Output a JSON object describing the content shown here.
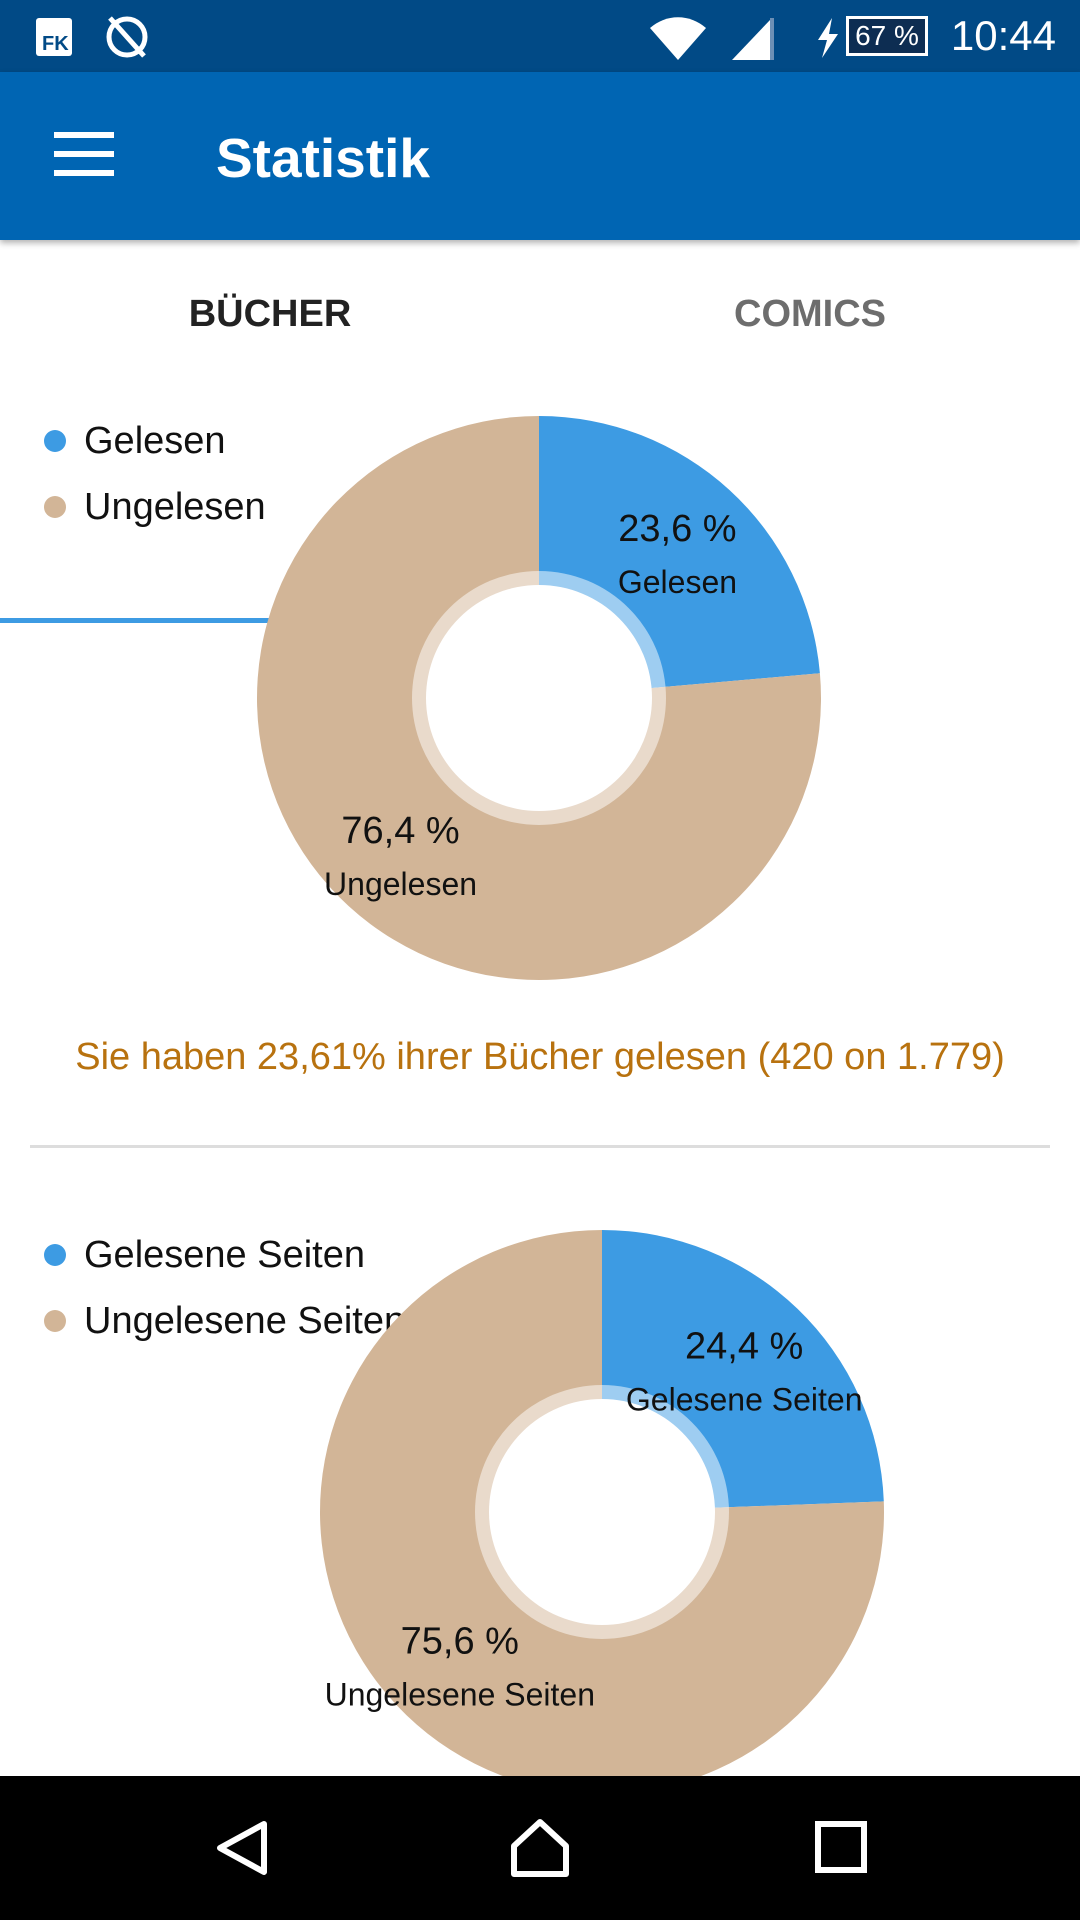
{
  "status_bar": {
    "time": "10:44",
    "battery": "67 %"
  },
  "app_bar": {
    "title": "Statistik"
  },
  "tabs": [
    {
      "label": "BÜCHER",
      "active": true
    },
    {
      "label": "COMICS",
      "active": false
    }
  ],
  "colors": {
    "read": "#3d9be3",
    "unread": "#d2b597",
    "accent": "#0065b3",
    "message": "#b8720f"
  },
  "chart_data": [
    {
      "type": "pie",
      "legend": [
        "Gelesen",
        "Ungelesen"
      ],
      "values": [
        23.6,
        76.4
      ],
      "value_labels": [
        "23,6 %",
        "76,4 %"
      ],
      "slice_labels": [
        "Gelesen",
        "Ungelesen"
      ],
      "legend_placement": "top-left"
    },
    {
      "type": "pie",
      "legend": [
        "Gelesene Seiten",
        "Ungelesene Seiten"
      ],
      "values": [
        24.4,
        75.6
      ],
      "value_labels": [
        "24,4 %",
        "75,6 %"
      ],
      "slice_labels": [
        "Gelesene Seiten",
        "Ungelesene Seiten"
      ],
      "legend_placement": "top-left"
    }
  ],
  "books_message": "Sie haben 23,61% ihrer Bücher gelesen (420 on 1.779)"
}
